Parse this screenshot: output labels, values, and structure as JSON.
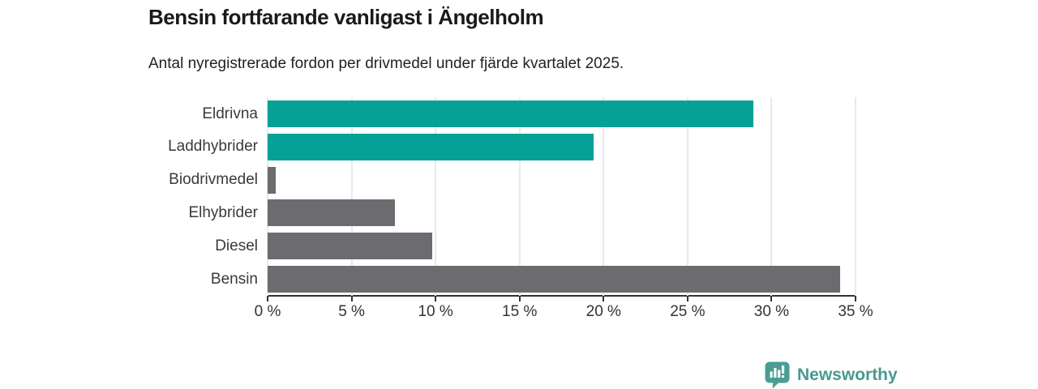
{
  "header": {
    "title": "Bensin fortfarande vanligast i Ängelholm",
    "subtitle": "Antal nyregistrerade fordon per drivmedel under fjärde kvartalet 2025."
  },
  "chart_data": {
    "type": "bar",
    "orientation": "horizontal",
    "title": "Bensin fortfarande vanligast i Ängelholm",
    "subtitle": "Antal nyregistrerade fordon per drivmedel under fjärde kvartalet 2025.",
    "categories": [
      "Eldrivna",
      "Laddhybrider",
      "Biodrivmedel",
      "Elhybrider",
      "Diesel",
      "Bensin"
    ],
    "values": [
      28.9,
      19.4,
      0.5,
      7.6,
      9.8,
      34.1
    ],
    "unit": "%",
    "bar_colors": [
      "#05a096",
      "#05a096",
      "#6c6c70",
      "#6c6c70",
      "#6c6c70",
      "#6c6c70"
    ],
    "xlim": [
      0,
      35
    ],
    "x_tick_values": [
      0,
      5,
      10,
      15,
      20,
      25,
      30,
      35
    ],
    "x_tick_labels": [
      "0 %",
      "5 %",
      "10 %",
      "15 %",
      "20 %",
      "25 %",
      "30 %",
      "35 %"
    ],
    "ylabel": "",
    "xlabel": "",
    "grid": true,
    "legend_position": "none"
  },
  "colors": {
    "teal_bar": "#05a096",
    "gray_bar": "#6c6c70",
    "axis": "#333333",
    "gridline": "#e9e9e9",
    "logo_teal": "#4a9d92",
    "brand_text": "#489a8f"
  },
  "footer": {
    "brand": "Newsworthy"
  }
}
